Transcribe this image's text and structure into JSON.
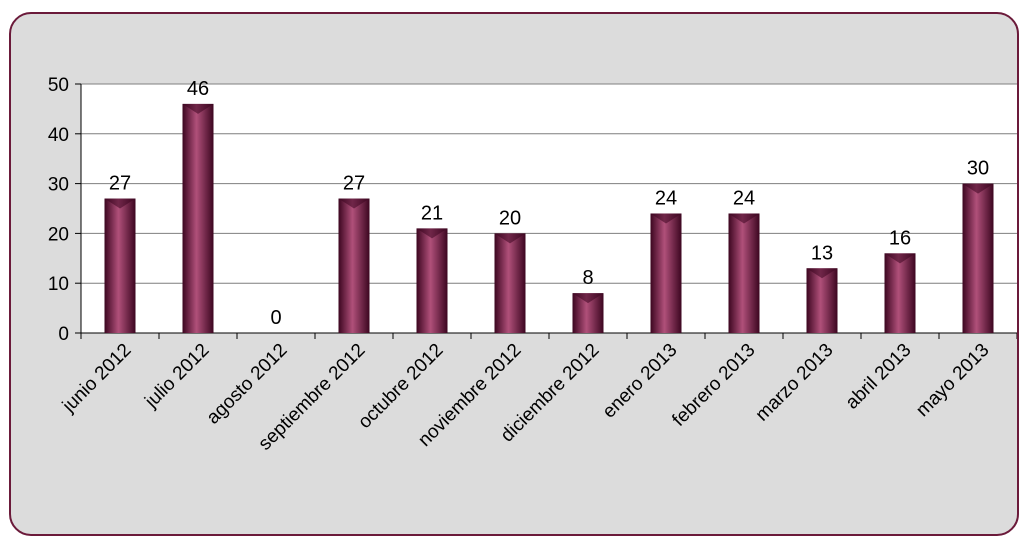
{
  "chart_data": {
    "type": "bar",
    "title": "",
    "xlabel": "",
    "ylabel": "",
    "categories": [
      "junio 2012",
      "julio 2012",
      "agosto 2012",
      "septiembre 2012",
      "octubre 2012",
      "noviembre 2012",
      "diciembre 2012",
      "enero 2013",
      "febrero 2013",
      "marzo 2013",
      "abril 2013",
      "mayo 2013"
    ],
    "values": [
      27,
      46,
      0,
      27,
      21,
      20,
      8,
      24,
      24,
      13,
      16,
      30
    ],
    "ylim": [
      0,
      50
    ],
    "yticks": [
      0,
      10,
      20,
      30,
      40,
      50
    ],
    "grid": true,
    "legend": "none",
    "data_labels": true,
    "colors": {
      "bar": "#6e1238",
      "bar_highlight": "#b0507a",
      "bar_shadow": "#3c0620",
      "frame_border": "#6b1a3a",
      "frame_background": "#dcdcdc",
      "plot_background": "#ffffff",
      "gridline": "#7f7f7f"
    }
  }
}
